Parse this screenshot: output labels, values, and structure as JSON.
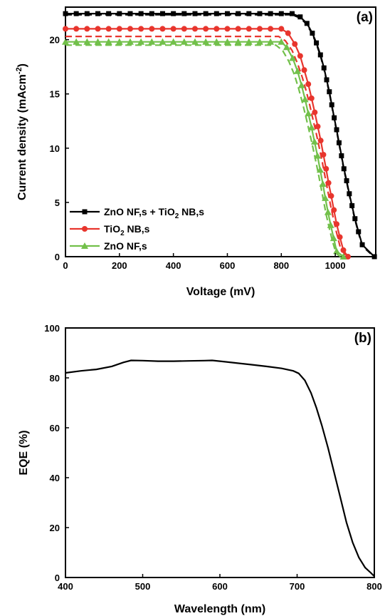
{
  "chart_data": [
    {
      "type": "line",
      "panel_label": "(a)",
      "xlabel": "Voltage (mV)",
      "ylabel_main": "Current density (mAcm",
      "ylabel_sup": "-2",
      "ylabel_close": ")",
      "xlim": [
        0,
        1150
      ],
      "ylim": [
        0,
        23
      ],
      "xticks": [
        0,
        200,
        400,
        600,
        800,
        1000
      ],
      "yticks": [
        0,
        5,
        10,
        15,
        20
      ],
      "legend_position": "lower-left",
      "series": [
        {
          "name": "ZnO NF,s + TiO2 NB,s",
          "legend_parts": [
            "ZnO NF,s + TiO",
            "2",
            " NB,s"
          ],
          "color": "#000000",
          "marker": "square",
          "measured": [
            [
              0,
              22.4
            ],
            [
              40,
              22.4
            ],
            [
              80,
              22.4
            ],
            [
              120,
              22.4
            ],
            [
              160,
              22.4
            ],
            [
              200,
              22.4
            ],
            [
              240,
              22.4
            ],
            [
              280,
              22.4
            ],
            [
              320,
              22.4
            ],
            [
              360,
              22.4
            ],
            [
              400,
              22.4
            ],
            [
              440,
              22.4
            ],
            [
              480,
              22.4
            ],
            [
              520,
              22.4
            ],
            [
              560,
              22.4
            ],
            [
              600,
              22.4
            ],
            [
              640,
              22.4
            ],
            [
              680,
              22.4
            ],
            [
              720,
              22.4
            ],
            [
              760,
              22.4
            ],
            [
              800,
              22.4
            ],
            [
              840,
              22.4
            ],
            [
              870,
              22.1
            ],
            [
              895,
              21.5
            ],
            [
              915,
              20.6
            ],
            [
              930,
              19.7
            ],
            [
              945,
              18.6
            ],
            [
              958,
              17.4
            ],
            [
              968,
              16.3
            ],
            [
              978,
              15.2
            ],
            [
              987,
              14.0
            ],
            [
              996,
              12.8
            ],
            [
              1005,
              11.7
            ],
            [
              1014,
              10.5
            ],
            [
              1023,
              9.3
            ],
            [
              1032,
              8.1
            ],
            [
              1042,
              7.0
            ],
            [
              1052,
              5.8
            ],
            [
              1062,
              4.7
            ],
            [
              1073,
              3.5
            ],
            [
              1086,
              2.3
            ],
            [
              1100,
              1.1
            ],
            [
              1145,
              0
            ]
          ],
          "fit": [
            [
              0,
              22.3
            ],
            [
              840,
              22.3
            ],
            [
              870,
              22.0
            ],
            [
              895,
              21.4
            ],
            [
              915,
              20.5
            ],
            [
              930,
              19.6
            ],
            [
              945,
              18.5
            ],
            [
              958,
              17.3
            ],
            [
              968,
              16.2
            ],
            [
              978,
              15.1
            ],
            [
              987,
              13.9
            ],
            [
              996,
              12.7
            ],
            [
              1005,
              11.6
            ],
            [
              1014,
              10.4
            ],
            [
              1023,
              9.2
            ],
            [
              1032,
              8.0
            ],
            [
              1042,
              6.9
            ],
            [
              1052,
              5.7
            ],
            [
              1062,
              4.6
            ],
            [
              1073,
              3.4
            ],
            [
              1086,
              2.2
            ],
            [
              1100,
              1.0
            ],
            [
              1143,
              0
            ]
          ]
        },
        {
          "name": "TiO2 NB,s",
          "legend_parts": [
            "TiO",
            "2",
            " NB,s"
          ],
          "color": "#e8352d",
          "marker": "circle",
          "measured": [
            [
              0,
              21.0
            ],
            [
              40,
              21.0
            ],
            [
              80,
              21.0
            ],
            [
              120,
              21.0
            ],
            [
              160,
              21.0
            ],
            [
              200,
              21.0
            ],
            [
              240,
              21.0
            ],
            [
              280,
              21.0
            ],
            [
              320,
              21.0
            ],
            [
              360,
              21.0
            ],
            [
              400,
              21.0
            ],
            [
              440,
              21.0
            ],
            [
              480,
              21.0
            ],
            [
              520,
              21.0
            ],
            [
              560,
              21.0
            ],
            [
              600,
              21.0
            ],
            [
              640,
              21.0
            ],
            [
              680,
              21.0
            ],
            [
              720,
              21.0
            ],
            [
              760,
              21.0
            ],
            [
              800,
              21.0
            ],
            [
              825,
              20.6
            ],
            [
              850,
              19.6
            ],
            [
              870,
              18.5
            ],
            [
              885,
              17.2
            ],
            [
              900,
              15.9
            ],
            [
              912,
              14.6
            ],
            [
              924,
              13.3
            ],
            [
              935,
              12.0
            ],
            [
              946,
              10.7
            ],
            [
              956,
              9.4
            ],
            [
              966,
              8.1
            ],
            [
              975,
              6.8
            ],
            [
              985,
              5.6
            ],
            [
              995,
              4.3
            ],
            [
              1005,
              3.0
            ],
            [
              1017,
              1.8
            ],
            [
              1030,
              0.6
            ],
            [
              1047,
              0
            ]
          ],
          "fit": [
            [
              0,
              20.3
            ],
            [
              790,
              20.3
            ],
            [
              815,
              19.9
            ],
            [
              840,
              19.0
            ],
            [
              860,
              17.8
            ],
            [
              878,
              16.5
            ],
            [
              893,
              15.2
            ],
            [
              906,
              13.9
            ],
            [
              918,
              12.6
            ],
            [
              930,
              11.3
            ],
            [
              941,
              10.0
            ],
            [
              952,
              8.7
            ],
            [
              962,
              7.4
            ],
            [
              972,
              6.1
            ],
            [
              982,
              4.8
            ],
            [
              993,
              3.5
            ],
            [
              1004,
              2.3
            ],
            [
              1017,
              1.0
            ],
            [
              1040,
              0
            ]
          ]
        },
        {
          "name": "ZnO NF,s",
          "legend_parts": [
            "ZnO NF,s"
          ],
          "color": "#72c04a",
          "marker": "triangle",
          "measured": [
            [
              0,
              19.8
            ],
            [
              40,
              19.8
            ],
            [
              80,
              19.8
            ],
            [
              120,
              19.8
            ],
            [
              160,
              19.8
            ],
            [
              200,
              19.8
            ],
            [
              240,
              19.8
            ],
            [
              280,
              19.8
            ],
            [
              320,
              19.8
            ],
            [
              360,
              19.8
            ],
            [
              400,
              19.8
            ],
            [
              440,
              19.8
            ],
            [
              480,
              19.8
            ],
            [
              520,
              19.8
            ],
            [
              560,
              19.8
            ],
            [
              600,
              19.8
            ],
            [
              640,
              19.8
            ],
            [
              680,
              19.8
            ],
            [
              720,
              19.8
            ],
            [
              760,
              19.8
            ],
            [
              800,
              19.8
            ],
            [
              820,
              19.3
            ],
            [
              842,
              18.3
            ],
            [
              860,
              17.1
            ],
            [
              875,
              15.8
            ],
            [
              888,
              14.5
            ],
            [
              900,
              13.2
            ],
            [
              912,
              11.9
            ],
            [
              923,
              10.6
            ],
            [
              934,
              9.3
            ],
            [
              944,
              8.0
            ],
            [
              954,
              6.7
            ],
            [
              963,
              5.4
            ],
            [
              973,
              4.1
            ],
            [
              983,
              2.9
            ],
            [
              994,
              1.7
            ],
            [
              1005,
              0.5
            ],
            [
              1030,
              0
            ]
          ],
          "fit": [
            [
              0,
              19.5
            ],
            [
              780,
              19.5
            ],
            [
              805,
              19.0
            ],
            [
              828,
              18.0
            ],
            [
              848,
              16.8
            ],
            [
              864,
              15.5
            ],
            [
              878,
              14.2
            ],
            [
              891,
              12.9
            ],
            [
              903,
              11.6
            ],
            [
              915,
              10.3
            ],
            [
              926,
              9.0
            ],
            [
              937,
              7.7
            ],
            [
              947,
              6.4
            ],
            [
              957,
              5.1
            ],
            [
              967,
              3.8
            ],
            [
              978,
              2.6
            ],
            [
              990,
              1.4
            ],
            [
              1003,
              0.3
            ],
            [
              1020,
              0
            ]
          ]
        }
      ]
    },
    {
      "type": "line",
      "panel_label": "(b)",
      "xlabel": "Wavelength (nm)",
      "ylabel": "EQE (%)",
      "xlim": [
        400,
        800
      ],
      "ylim": [
        0,
        100
      ],
      "xticks": [
        400,
        500,
        600,
        700,
        800
      ],
      "yticks": [
        0,
        20,
        40,
        60,
        80,
        100
      ],
      "series": [
        {
          "color": "#000000",
          "points": [
            [
              400,
              82
            ],
            [
              420,
              82.8
            ],
            [
              440,
              83.4
            ],
            [
              460,
              84.6
            ],
            [
              475,
              86.2
            ],
            [
              485,
              87.0
            ],
            [
              500,
              86.9
            ],
            [
              520,
              86.7
            ],
            [
              540,
              86.7
            ],
            [
              560,
              86.8
            ],
            [
              580,
              86.9
            ],
            [
              590,
              87.0
            ],
            [
              600,
              86.7
            ],
            [
              620,
              86.0
            ],
            [
              640,
              85.3
            ],
            [
              660,
              84.6
            ],
            [
              680,
              83.8
            ],
            [
              695,
              82.8
            ],
            [
              702,
              81.8
            ],
            [
              710,
              79.0
            ],
            [
              718,
              74.0
            ],
            [
              725,
              68.0
            ],
            [
              732,
              61.0
            ],
            [
              740,
              52.0
            ],
            [
              748,
              42.0
            ],
            [
              756,
              32.0
            ],
            [
              764,
              22.0
            ],
            [
              772,
              14.0
            ],
            [
              780,
              8.0
            ],
            [
              788,
              4.0
            ],
            [
              795,
              2.0
            ],
            [
              800,
              0.5
            ]
          ]
        }
      ]
    }
  ]
}
